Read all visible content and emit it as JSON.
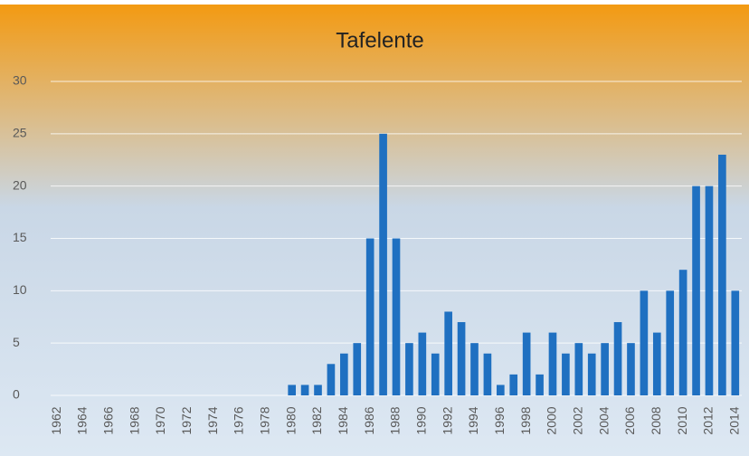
{
  "chart_data": {
    "type": "bar",
    "title": "Tafelente",
    "categories": [
      "1962",
      null,
      "1964",
      null,
      "1966",
      null,
      "1968",
      null,
      "1970",
      null,
      "1972",
      null,
      "1974",
      null,
      "1976",
      null,
      "1978",
      null,
      "1980",
      null,
      "1982",
      null,
      "1984",
      null,
      "1986",
      null,
      "1988",
      null,
      "1990",
      null,
      "1992",
      null,
      "1994",
      null,
      "1996",
      null,
      "1998",
      null,
      "2000",
      null,
      "2002",
      null,
      "2004",
      null,
      "2006",
      null,
      "2008",
      null,
      "2010",
      null,
      "2012",
      null,
      "2014"
    ],
    "values": [
      0,
      0,
      0,
      0,
      0,
      0,
      0,
      0,
      0,
      0,
      0,
      0,
      0,
      0,
      0,
      0,
      0,
      0,
      1,
      1,
      1,
      3,
      4,
      5,
      15,
      25,
      15,
      5,
      6,
      4,
      8,
      7,
      5,
      4,
      1,
      2,
      6,
      2,
      6,
      4,
      5,
      4,
      5,
      7,
      5,
      10,
      6,
      10,
      12,
      20,
      20,
      23,
      10
    ],
    "color": "#1f70c1",
    "ylim": [
      0,
      30
    ],
    "yticks": [
      0,
      5,
      10,
      15,
      20,
      25,
      30
    ],
    "grid": true
  }
}
